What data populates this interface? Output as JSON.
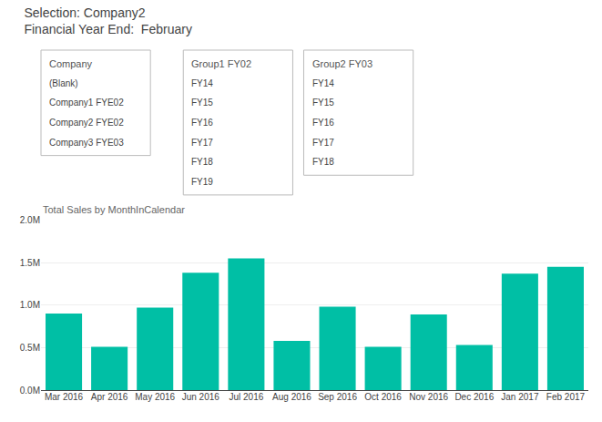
{
  "chart_data": {
    "type": "bar",
    "title": "Selection: Company2",
    "subtitle": "Financial Year End:  February",
    "annotations": [
      "Total Sales by MonthInCalendar",
      [
        "Company",
        "(Blank)",
        "Company1 FYE02",
        "Company2 FYE02",
        "Company3 FYE03"
      ],
      [
        "Group1 FY02",
        "FY14",
        "FY15",
        "FY16",
        "FY17",
        "FY18",
        "FY19"
      ],
      [
        "Group2 FY03",
        "FY14",
        "FY15",
        "FY16",
        "FY17",
        "FY18"
      ]
    ],
    "categories": [
      "Mar 2016",
      "Apr 2016",
      "May 2016",
      "Jun 2016",
      "Jul 2016",
      "Aug 2016",
      "Sep 2016",
      "Oct 2016",
      "Nov 2016",
      "Dec 2016",
      "Jan 2017",
      "Feb 2017"
    ],
    "values": [
      0.9,
      0.51,
      0.97,
      1.38,
      1.55,
      0.58,
      0.98,
      0.51,
      0.89,
      0.53,
      1.37,
      1.45
    ],
    "color": "#00BFA5",
    "ylim": [
      0,
      2.0
    ],
    "yticks": [
      {
        "value": 0.0,
        "label": "0.0M"
      },
      {
        "value": 0.5,
        "label": "0.5M"
      },
      {
        "value": 1.0,
        "label": "1.0M"
      },
      {
        "value": 1.5,
        "label": "1.5M"
      },
      {
        "value": 2.0,
        "label": "2.0M"
      }
    ],
    "grid": true
  }
}
